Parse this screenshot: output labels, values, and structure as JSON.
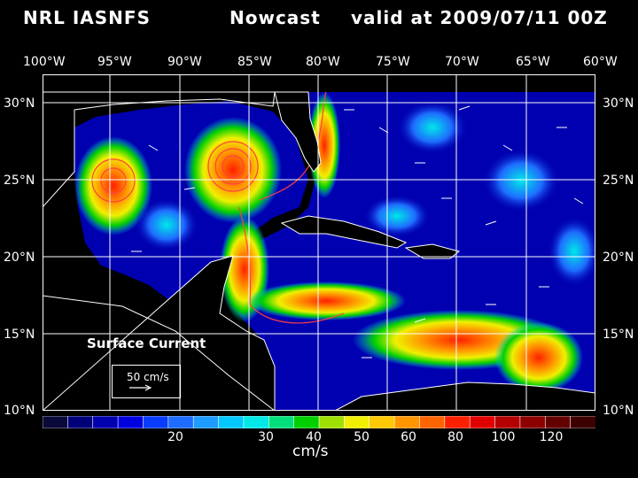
{
  "header": {
    "source": "NRL IASNFS",
    "product": "Nowcast",
    "valid": "valid at 2009/07/11 00Z"
  },
  "map": {
    "lon_labels": [
      "100°W",
      "95°W",
      "90°W",
      "85°W",
      "80°W",
      "75°W",
      "70°W",
      "65°W",
      "60°W"
    ],
    "lat_labels": [
      "30°N",
      "25°N",
      "20°N",
      "15°N",
      "10°N"
    ],
    "lon_range": [
      -100,
      -60
    ],
    "lat_range": [
      10,
      32
    ],
    "grid": true,
    "background": "#000000"
  },
  "annotation": {
    "surface_current": "Surface Current",
    "reference_vector": "50 cm/s"
  },
  "legend": {
    "ticks": [
      "20",
      "30",
      "40",
      "50",
      "60",
      "80",
      "100",
      "120"
    ],
    "units": "cm/s",
    "colors": [
      "#0a0a3a",
      "#00007a",
      "#0000b0",
      "#0000e0",
      "#0a3cff",
      "#1e6cff",
      "#1e9cff",
      "#00c8ff",
      "#00e8e8",
      "#00e07a",
      "#00d000",
      "#a0e000",
      "#f0f000",
      "#ffc800",
      "#ff9600",
      "#ff6400",
      "#ff2000",
      "#e00000",
      "#b40000",
      "#8c0000",
      "#640000",
      "#3c0000"
    ]
  }
}
